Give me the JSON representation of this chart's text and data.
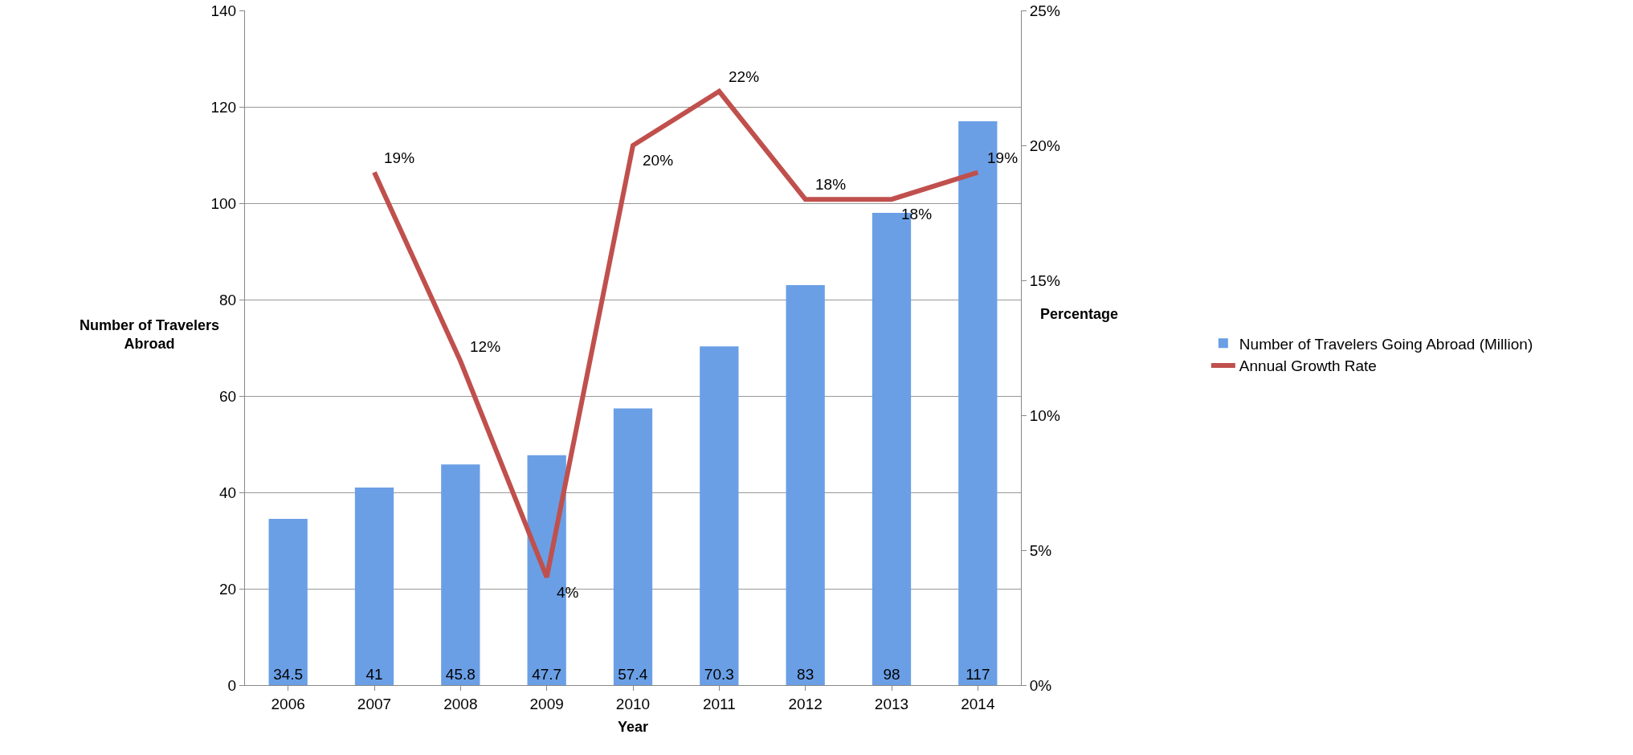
{
  "chart_data": {
    "type": "bar",
    "categories": [
      "2006",
      "2007",
      "2008",
      "2009",
      "2010",
      "2011",
      "2012",
      "2013",
      "2014"
    ],
    "series": [
      {
        "name": "Number of Travelers Going Abroad (Million)",
        "color": "#6a9fe6",
        "values": [
          34.5,
          41,
          45.8,
          47.7,
          57.4,
          70.3,
          83,
          98,
          117
        ],
        "value_labels": [
          "34.5",
          "41",
          "45.8",
          "47.7",
          "57.4",
          "70.3",
          "83",
          "98",
          "117"
        ]
      },
      {
        "type": "line",
        "name": "Annual Growth Rate",
        "color": "#c0504d",
        "axis": "y2",
        "values": [
          null,
          19,
          12,
          4,
          20,
          22,
          18,
          18,
          19
        ],
        "value_labels": [
          null,
          "19%",
          "12%",
          "4%",
          "20%",
          "22%",
          "18%",
          "18%",
          "19%"
        ]
      }
    ],
    "xlabel": "Year",
    "ylabel": "Number of Travelers Abroad",
    "y2label": "Percentage",
    "ylim": [
      0,
      140
    ],
    "yticks": [
      0,
      20,
      40,
      60,
      80,
      100,
      120,
      140
    ],
    "y2lim": [
      0,
      25
    ],
    "y2ticks": [
      {
        "value": 0,
        "label": "0%"
      },
      {
        "value": 5,
        "label": "5%"
      },
      {
        "value": 10,
        "label": "10%"
      },
      {
        "value": 15,
        "label": "15%"
      },
      {
        "value": 20,
        "label": "20%"
      },
      {
        "value": 25,
        "label": "25%"
      }
    ],
    "grid": "y",
    "legend": "right"
  }
}
